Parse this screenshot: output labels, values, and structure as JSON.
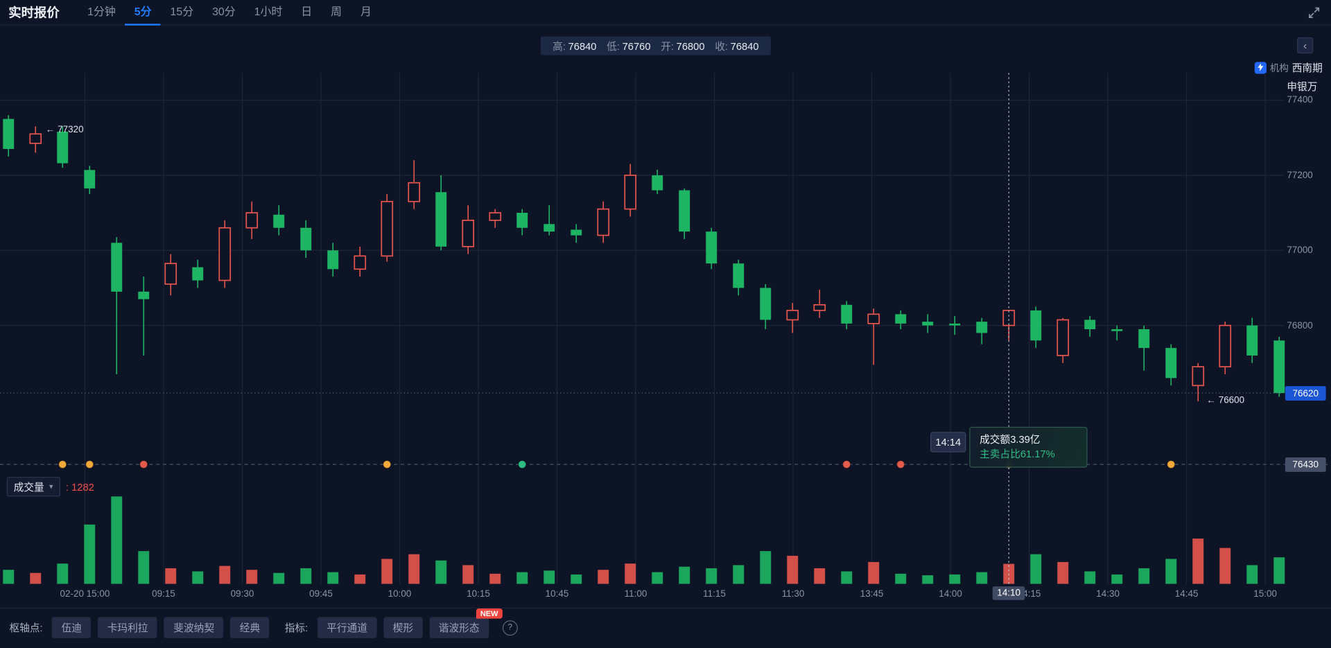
{
  "app": {
    "title": "实时报价"
  },
  "top_nav": {
    "tabs": [
      {
        "label": "1分钟",
        "active": false
      },
      {
        "label": "5分",
        "active": true
      },
      {
        "label": "15分",
        "active": false
      },
      {
        "label": "30分",
        "active": false
      },
      {
        "label": "1小时",
        "active": false
      },
      {
        "label": "日",
        "active": false
      },
      {
        "label": "周",
        "active": false
      },
      {
        "label": "月",
        "active": false
      }
    ]
  },
  "ohlc_bar": {
    "items": [
      {
        "label": "高:",
        "value": "76840"
      },
      {
        "label": "低:",
        "value": "76760"
      },
      {
        "label": "开:",
        "value": "76800"
      },
      {
        "label": "收:",
        "value": "76840"
      }
    ]
  },
  "right_panel": {
    "collapse_icon": "‹",
    "institution_label": "机构",
    "institutions": [
      "西南期",
      "申银万"
    ]
  },
  "price_axis": {
    "ticks": [
      "77400",
      "77200",
      "77000",
      "76800"
    ],
    "current_price": "76620",
    "lower_level": "76430"
  },
  "annotations": {
    "high_label": "← 77320",
    "low_label": "← 76600"
  },
  "crosshair": {
    "time": "14:14",
    "axis_time": "14:10",
    "tooltip_line1": "成交额3.39亿",
    "tooltip_line2": "主卖占比61.17%"
  },
  "volume_pane": {
    "indicator": "成交量",
    "value": ": 1282"
  },
  "time_axis": {
    "labels": [
      "02-20 15:00",
      "09:15",
      "09:30",
      "09:45",
      "10:00",
      "10:15",
      "10:45",
      "11:00",
      "11:15",
      "11:30",
      "13:45",
      "14:00",
      "14:15",
      "14:30",
      "14:45",
      "15:00"
    ]
  },
  "toolbar": {
    "pivot_label": "枢轴点:",
    "pivot_items": [
      "伍迪",
      "卡玛利拉",
      "斐波纳契",
      "经典"
    ],
    "indicator_label": "指标:",
    "indicator_items": [
      "平行通道",
      "楔形",
      "谐波形态"
    ],
    "new_badge": "NEW",
    "help": "?"
  },
  "colors": {
    "up": "#e8564e",
    "down": "#1db564",
    "accent": "#1f7cff",
    "grid": "#1b2438",
    "bg": "#0d1426",
    "text_dim": "#8a93a6",
    "badge_blue": "#1a56d6",
    "badge_gray": "#454f68",
    "green_text": "#2ebd85",
    "value_red": "#f0504a",
    "crosshair": "#ccd3e0",
    "dashed_level": "#49536e",
    "dotted_price": "#5b6680"
  },
  "chart_data": {
    "type": "candlestick",
    "interval": "5分",
    "convention": "red = up, green = down (CN)",
    "ylim": [
      76430,
      77470
    ],
    "price_ticks": [
      77400,
      77200,
      77000,
      76800
    ],
    "current_price": 76620,
    "session_low": 76600,
    "early_high_label": 77320,
    "lower_level_price": 76430,
    "columns": [
      "time",
      "open",
      "high",
      "low",
      "close",
      "volume"
    ],
    "candles": [
      [
        "02-20 14:50",
        77350,
        77360,
        77250,
        77270,
        900
      ],
      [
        "02-20 14:55",
        77285,
        77330,
        77260,
        77310,
        700
      ],
      [
        "02-20 15:00",
        77316,
        77330,
        77220,
        77232,
        1300
      ],
      [
        "09:05",
        77214,
        77225,
        77150,
        77165,
        3800
      ],
      [
        "09:10",
        77020,
        77035,
        76670,
        76890,
        5600
      ],
      [
        "09:15",
        76890,
        76930,
        76720,
        76870,
        2100
      ],
      [
        "09:20",
        76910,
        76990,
        76880,
        76965,
        1000
      ],
      [
        "09:25",
        76955,
        76975,
        76900,
        76920,
        800
      ],
      [
        "09:30",
        76920,
        77080,
        76900,
        77060,
        1150
      ],
      [
        "09:35",
        77060,
        77130,
        77030,
        77100,
        900
      ],
      [
        "09:40",
        77095,
        77120,
        77040,
        77060,
        700
      ],
      [
        "09:45",
        77060,
        77080,
        76980,
        77000,
        1000
      ],
      [
        "09:50",
        77000,
        77020,
        76930,
        76950,
        750
      ],
      [
        "09:55",
        76950,
        77010,
        76930,
        76985,
        600
      ],
      [
        "10:00",
        76985,
        77150,
        76970,
        77130,
        1600
      ],
      [
        "10:05",
        77130,
        77240,
        77110,
        77180,
        1900
      ],
      [
        "10:10",
        77155,
        77200,
        77000,
        77010,
        1500
      ],
      [
        "10:15",
        77010,
        77120,
        76990,
        77080,
        1200
      ],
      [
        "10:35",
        77080,
        77110,
        77060,
        77100,
        650
      ],
      [
        "10:40",
        77100,
        77110,
        77040,
        77060,
        750
      ],
      [
        "10:45",
        77070,
        77120,
        77040,
        77050,
        850
      ],
      [
        "10:50",
        77055,
        77070,
        77020,
        77040,
        600
      ],
      [
        "10:55",
        77040,
        77130,
        77020,
        77110,
        900
      ],
      [
        "11:00",
        77110,
        77230,
        77090,
        77200,
        1300
      ],
      [
        "11:05",
        77200,
        77215,
        77150,
        77160,
        750
      ],
      [
        "11:10",
        77160,
        77165,
        77030,
        77050,
        1100
      ],
      [
        "11:15",
        77050,
        77060,
        76950,
        76965,
        1000
      ],
      [
        "11:20",
        76965,
        76975,
        76880,
        76900,
        1200
      ],
      [
        "11:25",
        76900,
        76910,
        76790,
        76815,
        2100
      ],
      [
        "11:30",
        76815,
        76860,
        76780,
        76840,
        1800
      ],
      [
        "13:35",
        76840,
        76895,
        76820,
        76855,
        1000
      ],
      [
        "13:40",
        76855,
        76865,
        76790,
        76805,
        800
      ],
      [
        "13:45",
        76805,
        76845,
        76695,
        76830,
        1400
      ],
      [
        "13:50",
        76830,
        76840,
        76790,
        76805,
        650
      ],
      [
        "13:55",
        76810,
        76830,
        76780,
        76800,
        550
      ],
      [
        "14:00",
        76805,
        76825,
        76775,
        76800,
        600
      ],
      [
        "14:05",
        76810,
        76820,
        76750,
        76780,
        750
      ],
      [
        "14:10",
        76800,
        76840,
        76760,
        76840,
        1282
      ],
      [
        "14:15",
        76840,
        76850,
        76740,
        76760,
        1900
      ],
      [
        "14:20",
        76720,
        76820,
        76700,
        76815,
        1400
      ],
      [
        "14:25",
        76815,
        76825,
        76770,
        76790,
        800
      ],
      [
        "14:30",
        76790,
        76800,
        76760,
        76785,
        600
      ],
      [
        "14:35",
        76790,
        76800,
        76680,
        76740,
        1000
      ],
      [
        "14:40",
        76740,
        76750,
        76640,
        76660,
        1600
      ],
      [
        "14:45",
        76640,
        76700,
        76598,
        76690,
        2900
      ],
      [
        "14:50",
        76690,
        76810,
        76670,
        76800,
        2300
      ],
      [
        "14:55",
        76800,
        76820,
        76700,
        76720,
        1200
      ],
      [
        "15:00",
        76760,
        76770,
        76610,
        76620,
        1700
      ]
    ],
    "hovered": {
      "time_axis": "14:10",
      "tooltip_time": "14:14",
      "open": 76800,
      "high": 76840,
      "low": 76760,
      "close": 76840,
      "volume": 1282,
      "turnover": "3.39亿",
      "sell_ratio": "61.17%"
    },
    "markers": [
      {
        "index": 2,
        "color": "#f2a93b"
      },
      {
        "index": 3,
        "color": "#f2a93b"
      },
      {
        "index": 5,
        "color": "#e25b4b"
      },
      {
        "index": 14,
        "color": "#f2a93b"
      },
      {
        "index": 19,
        "color": "#2ebd85"
      },
      {
        "index": 31,
        "color": "#e25b4b"
      },
      {
        "index": 33,
        "color": "#e25b4b"
      },
      {
        "index": 37,
        "color": "#f2a93b"
      },
      {
        "index": 43,
        "color": "#f2a93b"
      }
    ]
  }
}
